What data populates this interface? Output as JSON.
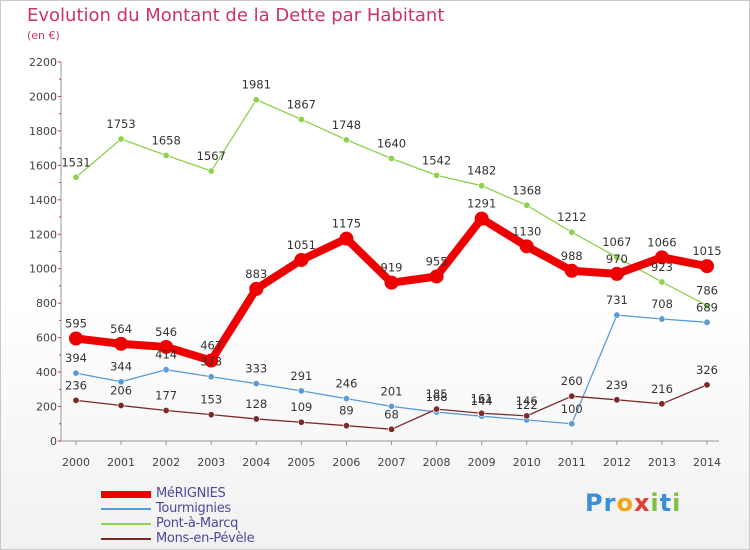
{
  "title": "Evolution du Montant de la Dette par Habitant",
  "subtitle": "(en €)",
  "brand": "Proxiti",
  "chart_data": {
    "type": "line",
    "title": "Evolution du Montant de la Dette par Habitant",
    "subtitle": "(en €)",
    "xlabel": "",
    "ylabel": "",
    "x": [
      "2000",
      "2001",
      "2002",
      "2003",
      "2004",
      "2005",
      "2006",
      "2007",
      "2008",
      "2009",
      "2010",
      "2011",
      "2012",
      "2013",
      "2014"
    ],
    "y_ticks": [
      "0",
      "200",
      "400",
      "600",
      "800",
      "1000",
      "1200",
      "1400",
      "1600",
      "1800",
      "2000",
      "2200"
    ],
    "ylim": [
      0,
      2200
    ],
    "grid": false,
    "legend_position": "bottom-left",
    "series": [
      {
        "name": "Pont-à-Marcq",
        "color": "#8fd14f",
        "style": "thin",
        "values": [
          1531,
          1753,
          1658,
          1567,
          1981,
          1867,
          1748,
          1640,
          1542,
          1482,
          1368,
          1212,
          1067,
          923,
          786
        ],
        "labels": [
          "1531",
          "1753",
          "1658",
          "1567",
          "1981",
          "1867",
          "1748",
          "1640",
          "1542",
          "1482",
          "1368",
          "1212",
          "1067",
          "923",
          "786"
        ]
      },
      {
        "name": "Tourmignies",
        "color": "#5b9bd5",
        "style": "thin",
        "values": [
          394,
          344,
          414,
          373,
          333,
          291,
          246,
          201,
          168,
          144,
          122,
          100,
          731,
          708,
          689
        ],
        "labels": [
          "394",
          "344",
          "414",
          "373",
          "333",
          "291",
          "246",
          "201",
          "168",
          "144",
          "122",
          "100",
          "731",
          "708",
          "689"
        ]
      },
      {
        "name": "Mons-en-Pévèle",
        "color": "#7b2a2a",
        "style": "thin",
        "values": [
          236,
          206,
          177,
          153,
          128,
          109,
          89,
          68,
          185,
          161,
          146,
          260,
          239,
          216,
          326
        ],
        "labels": [
          "236",
          "206",
          "177",
          "153",
          "128",
          "109",
          "89",
          "68",
          "185",
          "161",
          "146",
          "260",
          "239",
          "216",
          "326"
        ]
      },
      {
        "name": "MéRIGNIES",
        "color": "#ee0000",
        "style": "thick",
        "values": [
          595,
          564,
          546,
          467,
          883,
          1051,
          1175,
          919,
          955,
          1291,
          1130,
          988,
          970,
          1066,
          1015
        ],
        "labels": [
          "595",
          "564",
          "546",
          "467",
          "883",
          "1051",
          "1175",
          "919",
          "955",
          "1291",
          "1130",
          "988",
          "970",
          "1066",
          "1015"
        ]
      }
    ],
    "legend_order": [
      "MéRIGNIES",
      "Tourmignies",
      "Pont-à-Marcq",
      "Mons-en-Pévèle"
    ]
  },
  "legend": [
    {
      "label": "MéRIGNIES"
    },
    {
      "label": "Tourmignies"
    },
    {
      "label": "Pont-à-Marcq"
    },
    {
      "label": "Mons-en-Pévèle"
    }
  ]
}
